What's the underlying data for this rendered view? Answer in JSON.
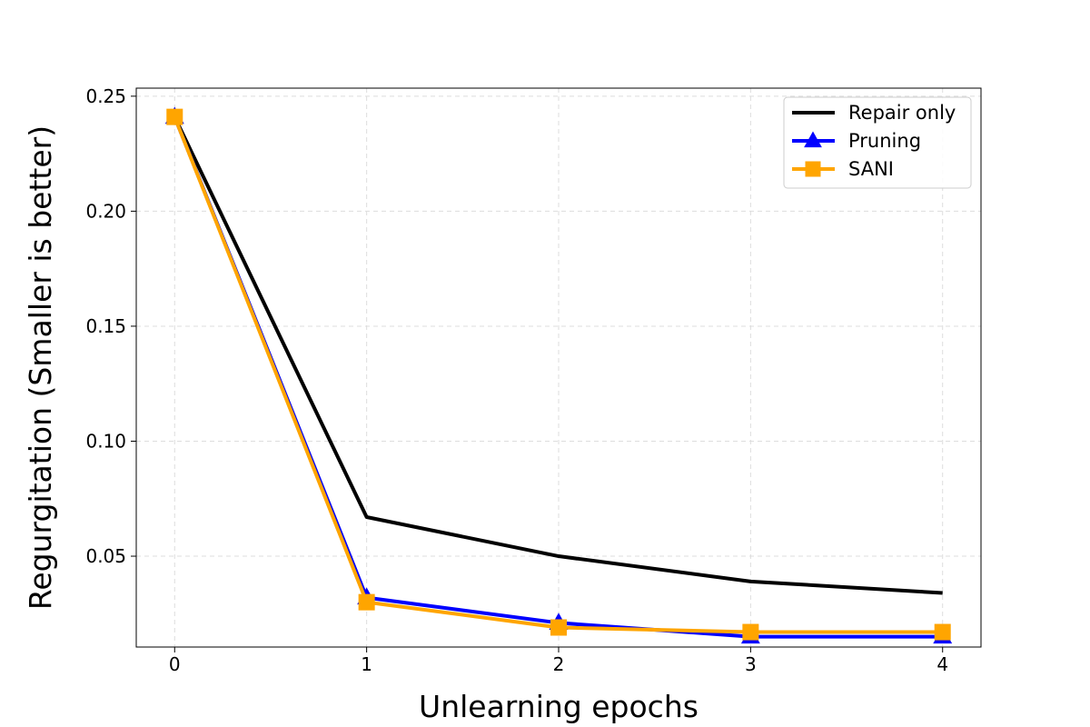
{
  "chart_data": {
    "type": "line",
    "title": "",
    "xlabel": "Unlearning epochs",
    "ylabel": "Regurgitation (Smaller is better)",
    "x": [
      0,
      1,
      2,
      3,
      4
    ],
    "xlim": [
      -0.2,
      4.2
    ],
    "ylim": [
      0.0105,
      0.2535
    ],
    "xticks": [
      0,
      1,
      2,
      3,
      4
    ],
    "yticks": [
      0.05,
      0.1,
      0.15,
      0.2,
      0.25
    ],
    "ytick_labels": [
      "0.05",
      "0.10",
      "0.15",
      "0.20",
      "0.25"
    ],
    "grid": true,
    "legend_position": "top-right",
    "series": [
      {
        "name": "Repair only",
        "values": [
          0.241,
          0.067,
          0.05,
          0.039,
          0.034
        ],
        "color": "#000000",
        "marker": "none"
      },
      {
        "name": "Pruning",
        "values": [
          0.241,
          0.032,
          0.021,
          0.015,
          0.015
        ],
        "color": "#0000ff",
        "marker": "triangle"
      },
      {
        "name": "SANI",
        "values": [
          0.241,
          0.03,
          0.019,
          0.017,
          0.017
        ],
        "color": "#ffa500",
        "marker": "square"
      }
    ]
  }
}
